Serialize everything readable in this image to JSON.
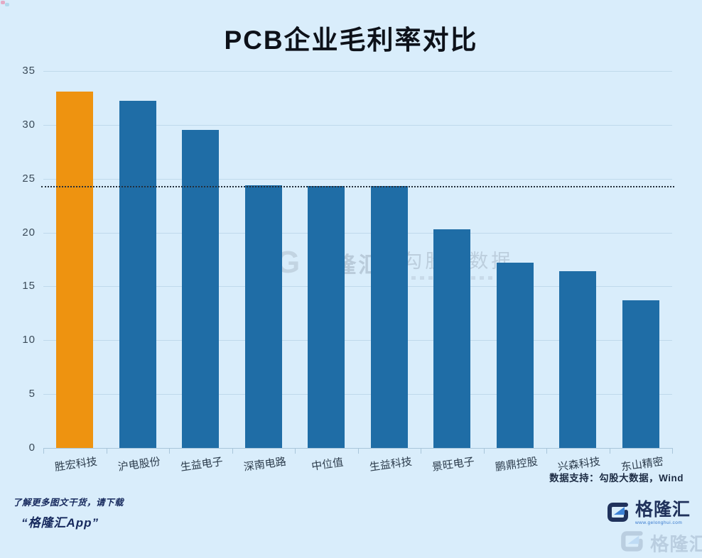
{
  "title": "PCB企业毛利率对比",
  "chart_data": {
    "type": "bar",
    "title": "PCB企业毛利率对比",
    "categories": [
      "胜宏科技",
      "沪电股份",
      "生益电子",
      "深南电路",
      "中位值",
      "生益科技",
      "景旺电子",
      "鹏鼎控股",
      "兴森科技",
      "东山精密"
    ],
    "values": [
      33.1,
      32.2,
      29.5,
      24.4,
      24.3,
      24.3,
      20.3,
      17.2,
      16.4,
      13.7
    ],
    "xlabel": "",
    "ylabel": "",
    "ylim": [
      0,
      35
    ],
    "ytick_step": 5,
    "yticks": [
      0,
      5,
      10,
      15,
      20,
      25,
      30,
      35
    ],
    "grid": "horizontal",
    "legend": "none",
    "bar_color_default": "#1f6da6",
    "bar_color_highlight": "#ee9310",
    "highlight_index": 0,
    "reference_line": {
      "value": 24.3,
      "style": "dotted",
      "color": "#232e3a",
      "label": "中位值线"
    }
  },
  "watermark": {
    "g_glyph": "G",
    "brand": "格隆汇",
    "data_brand": "勾股大数据"
  },
  "footer": {
    "source_note": "数据支持：勾股大数据，Wind",
    "promo_line1": "了解更多图文干货，请下载",
    "promo_line2": "“格隆汇App”",
    "brand_name": "格隆汇",
    "brand_url": "www.gelonghui.com"
  },
  "colors": {
    "background": "#d9edfb",
    "bar_blue": "#1f6da6",
    "bar_orange": "#ee9310",
    "title_text": "#0d1119",
    "navy_brand": "#20325c"
  }
}
